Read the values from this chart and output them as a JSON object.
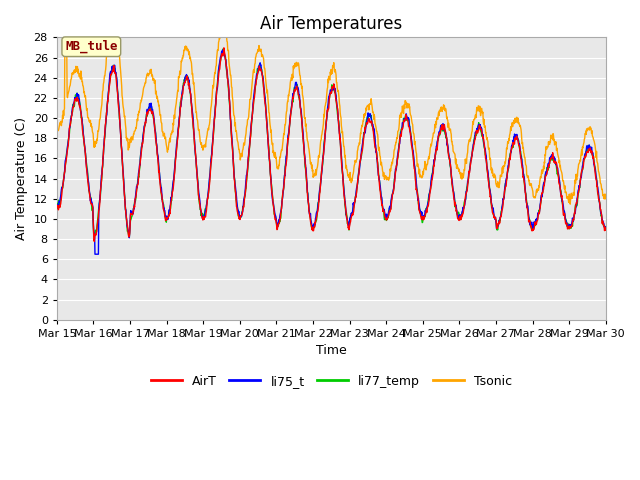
{
  "title": "Air Temperatures",
  "xlabel": "Time",
  "ylabel": "Air Temperature (C)",
  "annotation_text": "MB_tule",
  "annotation_color": "#8B0000",
  "annotation_bg": "#FFFFCC",
  "annotation_border": "#999966",
  "ylim": [
    0,
    28
  ],
  "yticks": [
    0,
    2,
    4,
    6,
    8,
    10,
    12,
    14,
    16,
    18,
    20,
    22,
    24,
    26,
    28
  ],
  "xtick_labels": [
    "Mar 15",
    "Mar 16",
    "Mar 17",
    "Mar 18",
    "Mar 19",
    "Mar 20",
    "Mar 21",
    "Mar 22",
    "Mar 23",
    "Mar 24",
    "Mar 25",
    "Mar 26",
    "Mar 27",
    "Mar 28",
    "Mar 29",
    "Mar 30"
  ],
  "series_AirT_color": "#FF0000",
  "series_li75_color": "#0000FF",
  "series_li77_color": "#00CC00",
  "series_Tsonic_color": "#FFA500",
  "linewidth": 1.0,
  "plot_bg": "#E8E8E8",
  "grid_color": "#FFFFFF",
  "title_fontsize": 12,
  "label_fontsize": 9,
  "tick_fontsize": 8,
  "legend_fontsize": 9,
  "n_days": 15,
  "n_per_day": 96,
  "day_peaks": [
    22,
    25,
    21,
    24,
    26.5,
    25,
    23,
    23,
    20,
    20,
    19,
    19,
    18,
    16,
    17
  ],
  "day_mins": [
    11,
    8,
    10,
    10,
    10,
    10,
    9,
    9,
    10,
    10,
    10,
    10,
    9,
    9,
    9
  ],
  "tsonic_offset_day": [
    3,
    4,
    3.5,
    3,
    2.5,
    2,
    2.5,
    2,
    1.5,
    1.5,
    2,
    2,
    2,
    2,
    2
  ],
  "tsonic_offset_night": [
    8,
    9,
    8,
    7,
    7,
    6,
    6,
    5,
    4,
    4,
    5,
    4,
    4,
    3,
    3
  ]
}
